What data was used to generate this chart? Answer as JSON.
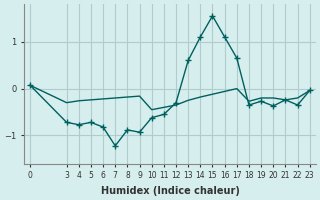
{
  "xlabel": "Humidex (Indice chaleur)",
  "ylabel": "",
  "bg_color": "#d6eeed",
  "grid_color": "#b0cccc",
  "line_color": "#006060",
  "marker_color": "#006060",
  "x_values": [
    0,
    3,
    4,
    5,
    6,
    7,
    8,
    9,
    10,
    11,
    12,
    13,
    14,
    15,
    16,
    17,
    18,
    19,
    20,
    21,
    22,
    23
  ],
  "y_values": [
    0.07,
    -0.72,
    -0.77,
    -0.72,
    -0.82,
    -1.22,
    -0.88,
    -0.93,
    -0.62,
    -0.55,
    -0.3,
    0.6,
    1.1,
    1.55,
    1.1,
    0.65,
    -0.35,
    -0.27,
    -0.37,
    -0.24,
    -0.35,
    -0.04
  ],
  "x2_values": [
    0,
    3,
    4,
    5,
    6,
    7,
    8,
    9,
    10,
    11,
    12,
    13,
    14,
    15,
    16,
    17,
    18,
    19,
    20,
    21,
    22,
    23
  ],
  "y2_values": [
    0.07,
    -0.3,
    -0.26,
    -0.24,
    -0.22,
    -0.2,
    -0.18,
    -0.16,
    -0.45,
    -0.4,
    -0.35,
    -0.25,
    -0.18,
    -0.12,
    -0.06,
    0.0,
    -0.27,
    -0.2,
    -0.2,
    -0.24,
    -0.2,
    -0.04
  ],
  "ylim": [
    -1.6,
    1.8
  ],
  "yticks": [
    -1,
    0,
    1
  ],
  "xticks": [
    0,
    3,
    4,
    5,
    6,
    7,
    8,
    9,
    10,
    11,
    12,
    13,
    14,
    15,
    16,
    17,
    18,
    19,
    20,
    21,
    22,
    23
  ]
}
